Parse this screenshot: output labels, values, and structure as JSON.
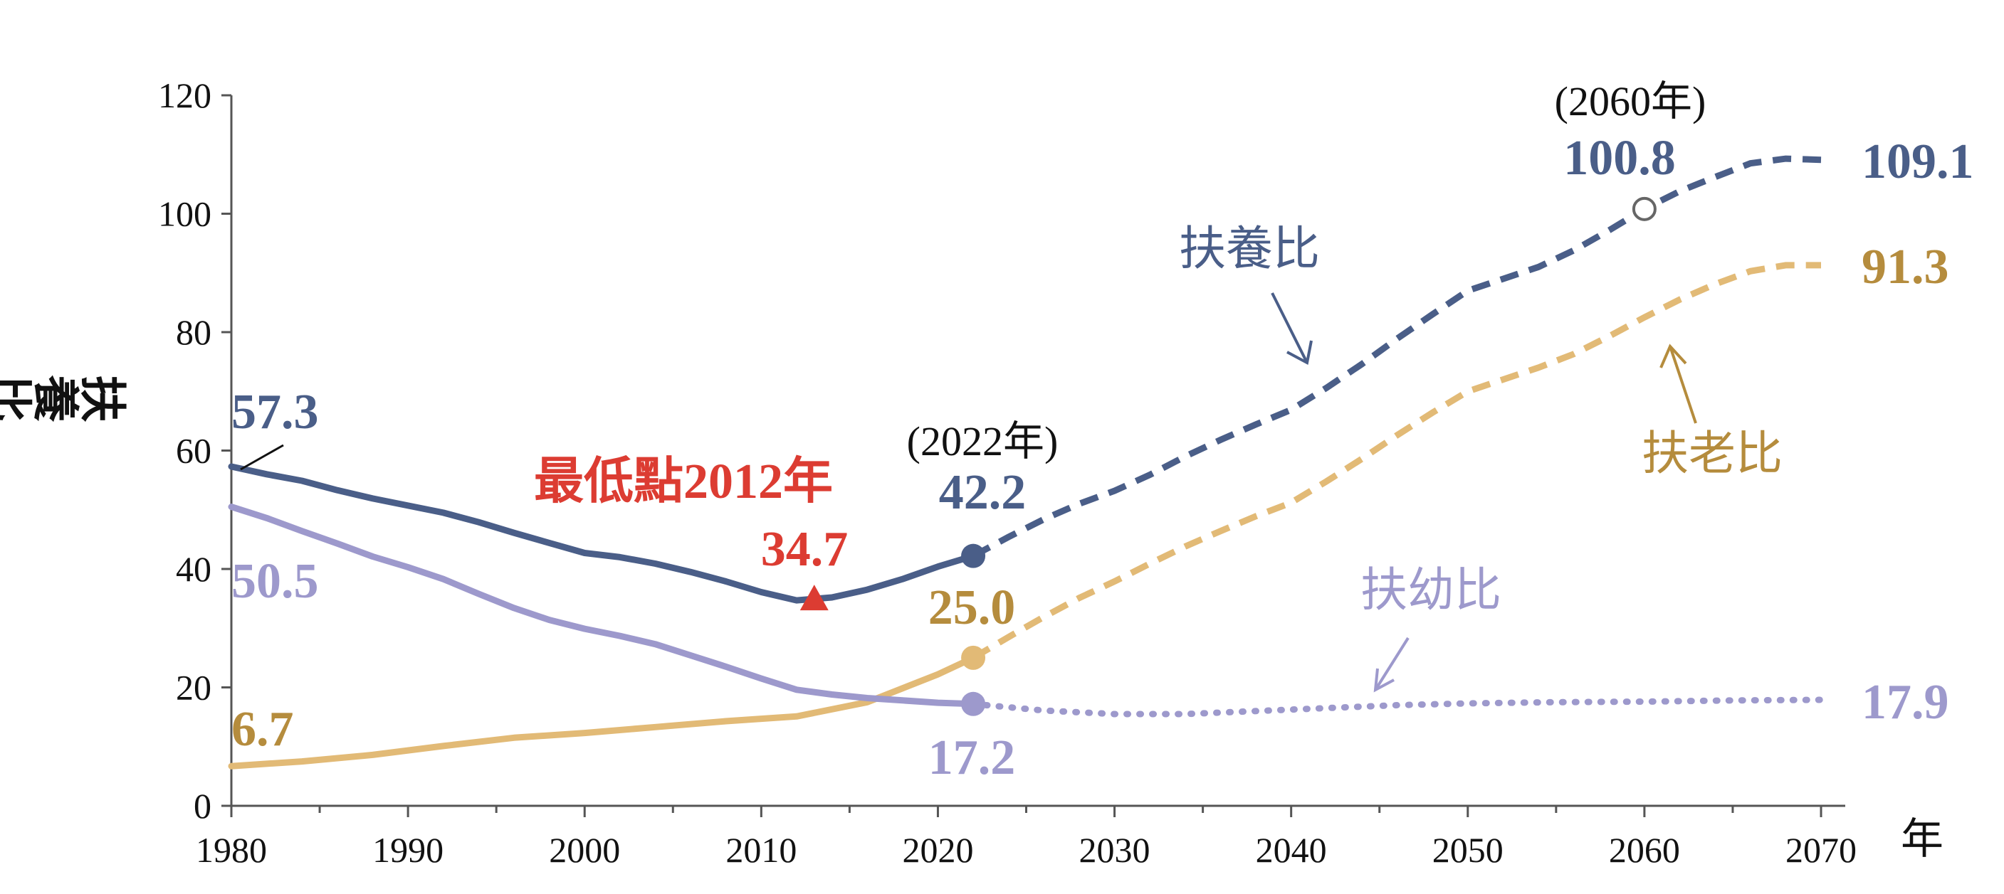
{
  "chart_data": {
    "type": "line",
    "ylabel": "扶養比",
    "xlabel": "年",
    "xlim": [
      1980,
      2070
    ],
    "ylim": [
      0,
      120
    ],
    "x_ticks": [
      "1980",
      "1990",
      "2000",
      "2010",
      "2020",
      "2030",
      "2040",
      "2050",
      "2060",
      "2070"
    ],
    "y_ticks": [
      "0",
      "20",
      "40",
      "60",
      "80",
      "100",
      "120"
    ],
    "grid": false,
    "projection_start": 2022,
    "colors": {
      "total": "#4a5e88",
      "elderly": "#e2ba76",
      "youth": "#9d99cc",
      "highlight": "#dc3c32"
    },
    "series": [
      {
        "key": "total",
        "name": "扶養比",
        "points": [
          [
            1980,
            57.3
          ],
          [
            1982,
            56.0
          ],
          [
            1984,
            54.9
          ],
          [
            1986,
            53.3
          ],
          [
            1988,
            51.9
          ],
          [
            1990,
            50.7
          ],
          [
            1992,
            49.5
          ],
          [
            1994,
            47.9
          ],
          [
            1996,
            46.1
          ],
          [
            1998,
            44.4
          ],
          [
            2000,
            42.7
          ],
          [
            2002,
            42.0
          ],
          [
            2004,
            40.9
          ],
          [
            2006,
            39.5
          ],
          [
            2008,
            37.9
          ],
          [
            2010,
            36.1
          ],
          [
            2012,
            34.7
          ],
          [
            2014,
            35.2
          ],
          [
            2016,
            36.5
          ],
          [
            2018,
            38.3
          ],
          [
            2020,
            40.4
          ],
          [
            2022,
            42.2
          ],
          [
            2024,
            45.4
          ],
          [
            2026,
            48.4
          ],
          [
            2028,
            51.0
          ],
          [
            2030,
            53.2
          ],
          [
            2032,
            55.9
          ],
          [
            2034,
            59.0
          ],
          [
            2036,
            61.8
          ],
          [
            2038,
            64.4
          ],
          [
            2040,
            66.9
          ],
          [
            2042,
            70.6
          ],
          [
            2044,
            74.6
          ],
          [
            2046,
            78.9
          ],
          [
            2048,
            83.0
          ],
          [
            2050,
            87.0
          ],
          [
            2052,
            89.0
          ],
          [
            2054,
            91.0
          ],
          [
            2056,
            93.8
          ],
          [
            2058,
            97.2
          ],
          [
            2060,
            100.8
          ],
          [
            2062,
            103.8
          ],
          [
            2064,
            106.2
          ],
          [
            2066,
            108.5
          ],
          [
            2068,
            109.3
          ],
          [
            2070,
            109.1
          ]
        ]
      },
      {
        "key": "elderly",
        "name": "扶老比",
        "points": [
          [
            1980,
            6.7
          ],
          [
            1984,
            7.5
          ],
          [
            1988,
            8.6
          ],
          [
            1992,
            10.1
          ],
          [
            1996,
            11.5
          ],
          [
            2000,
            12.3
          ],
          [
            2004,
            13.3
          ],
          [
            2008,
            14.3
          ],
          [
            2012,
            15.1
          ],
          [
            2016,
            17.5
          ],
          [
            2020,
            22.2
          ],
          [
            2022,
            25.0
          ],
          [
            2024,
            28.5
          ],
          [
            2026,
            31.9
          ],
          [
            2028,
            35.1
          ],
          [
            2030,
            37.9
          ],
          [
            2032,
            40.9
          ],
          [
            2034,
            43.8
          ],
          [
            2036,
            46.4
          ],
          [
            2038,
            48.9
          ],
          [
            2040,
            51.2
          ],
          [
            2042,
            54.8
          ],
          [
            2044,
            58.6
          ],
          [
            2046,
            62.6
          ],
          [
            2048,
            66.4
          ],
          [
            2050,
            70.0
          ],
          [
            2052,
            72.0
          ],
          [
            2054,
            74.0
          ],
          [
            2056,
            76.3
          ],
          [
            2058,
            79.3
          ],
          [
            2060,
            82.5
          ],
          [
            2062,
            85.5
          ],
          [
            2064,
            88.1
          ],
          [
            2066,
            90.3
          ],
          [
            2068,
            91.3
          ],
          [
            2070,
            91.3
          ]
        ]
      },
      {
        "key": "youth",
        "name": "扶幼比",
        "points": [
          [
            1980,
            50.5
          ],
          [
            1982,
            48.6
          ],
          [
            1984,
            46.4
          ],
          [
            1986,
            44.3
          ],
          [
            1988,
            42.1
          ],
          [
            1990,
            40.3
          ],
          [
            1992,
            38.3
          ],
          [
            1994,
            35.8
          ],
          [
            1996,
            33.4
          ],
          [
            1998,
            31.4
          ],
          [
            2000,
            29.9
          ],
          [
            2002,
            28.7
          ],
          [
            2004,
            27.3
          ],
          [
            2006,
            25.4
          ],
          [
            2008,
            23.5
          ],
          [
            2010,
            21.5
          ],
          [
            2012,
            19.6
          ],
          [
            2014,
            18.8
          ],
          [
            2016,
            18.2
          ],
          [
            2018,
            17.8
          ],
          [
            2020,
            17.4
          ],
          [
            2022,
            17.2
          ],
          [
            2026,
            16.1
          ],
          [
            2030,
            15.5
          ],
          [
            2034,
            15.5
          ],
          [
            2038,
            16.0
          ],
          [
            2042,
            16.5
          ],
          [
            2046,
            17.0
          ],
          [
            2050,
            17.3
          ],
          [
            2055,
            17.5
          ],
          [
            2060,
            17.6
          ],
          [
            2065,
            17.8
          ],
          [
            2070,
            17.9
          ]
        ]
      }
    ],
    "value_labels": {
      "total_1980": "57.3",
      "youth_1980": "50.5",
      "elderly_1980": "6.7",
      "total_2022": "42.2",
      "elderly_2022": "25.0",
      "youth_2022": "17.2",
      "total_2060": "100.8",
      "total_2070": "109.1",
      "elderly_2070": "91.3",
      "youth_2070": "17.9",
      "low_value": "34.7"
    },
    "annotations": {
      "lowest_title": "最低點2012年",
      "low_point": [
        2013,
        34.7
      ],
      "year_2022": "(2022年)",
      "year_2060": "(2060年)"
    }
  }
}
